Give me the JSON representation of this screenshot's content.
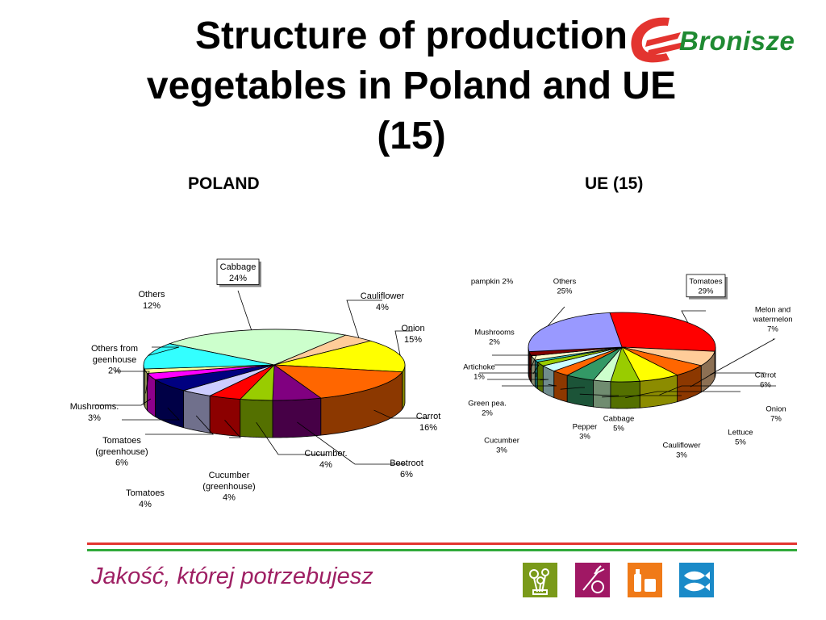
{
  "title": "Structure of production vegetables in Poland and UE (15)",
  "logo": {
    "text": "Bronisze"
  },
  "footer": {
    "slogan": "Jakość, której potrzebujesz"
  },
  "colors": {
    "footer_red": "#e3342f",
    "footer_green": "#2faa3a",
    "slogan": "#9e1f63",
    "logo_green": "#1f8a32",
    "logo_red": "#e3342f"
  },
  "footer_icons": [
    {
      "name": "flowers-icon",
      "color": "#7a9a1a"
    },
    {
      "name": "vegetables-icon",
      "color": "#a01864"
    },
    {
      "name": "groceries-icon",
      "color": "#f07a18"
    },
    {
      "name": "fish-icon",
      "color": "#1a8ac8"
    }
  ],
  "chart_data": [
    {
      "type": "pie",
      "title": "POLAND",
      "slices": [
        {
          "label": "Cabbage",
          "value": 24,
          "display": "24%",
          "color": "#ccffcc"
        },
        {
          "label": "Cauliflower",
          "value": 4,
          "display": "4%",
          "color": "#ffcc99"
        },
        {
          "label": "Onion",
          "value": 15,
          "display": "15%",
          "color": "#ffff00"
        },
        {
          "label": "Carrot",
          "value": 16,
          "display": "16%",
          "color": "#ff6600"
        },
        {
          "label": "Beetroot",
          "value": 6,
          "display": "6%",
          "color": "#800080"
        },
        {
          "label": "Cucumber.",
          "value": 4,
          "display": "4%",
          "color": "#99cc00"
        },
        {
          "label": "Cucumber (greenhouse)",
          "value": 4,
          "display": "4%",
          "color": "#ff0000"
        },
        {
          "label": "Tomatoes",
          "value": 4,
          "display": "4%",
          "color": "#ccccff"
        },
        {
          "label": "Tomatoes (greenhouse)",
          "value": 6,
          "display": "6%",
          "color": "#000080"
        },
        {
          "label": "Mushrooms.",
          "value": 3,
          "display": "3%",
          "color": "#ff00ff"
        },
        {
          "label": "Others from geenhouse",
          "value": 2,
          "display": "2%",
          "color": "#ffff99"
        },
        {
          "label": "Others",
          "value": 12,
          "display": "12%",
          "color": "#33ffff"
        }
      ]
    },
    {
      "type": "pie",
      "title": "UE (15)",
      "slices": [
        {
          "label": "Tomatoes",
          "value": 29,
          "display": "29%",
          "color": "#ff0000"
        },
        {
          "label": "Melon and watermelon",
          "value": 7,
          "display": "7%",
          "color": "#ffcc99"
        },
        {
          "label": "Carrot",
          "value": 6,
          "display": "6%",
          "color": "#ff6600"
        },
        {
          "label": "Onion",
          "value": 7,
          "display": "7%",
          "color": "#ffff00"
        },
        {
          "label": "Lettuce",
          "value": 5,
          "display": "5%",
          "color": "#99cc00"
        },
        {
          "label": "Cauliflower",
          "value": 3,
          "display": "3%",
          "color": "#ccffcc"
        },
        {
          "label": "Cabbage",
          "value": 5,
          "display": "5%",
          "color": "#339966"
        },
        {
          "label": "Pepper",
          "value": 3,
          "display": "3%",
          "color": "#ff6600"
        },
        {
          "label": "Cucumber",
          "value": 3,
          "display": "3%",
          "color": "#ccffff"
        },
        {
          "label": "Green pea.",
          "value": 2,
          "display": "2%",
          "color": "#99cc00"
        },
        {
          "label": "Artichoke",
          "value": 1,
          "display": "1%",
          "color": "#33cccc"
        },
        {
          "label": "Mushrooms",
          "value": 2,
          "display": "2%",
          "color": "#ffffcc"
        },
        {
          "label": "pampkin",
          "value": 2,
          "display": "2%",
          "color": "#800000"
        },
        {
          "label": "Others",
          "value": 25,
          "display": "25%",
          "color": "#9999ff"
        }
      ]
    }
  ]
}
